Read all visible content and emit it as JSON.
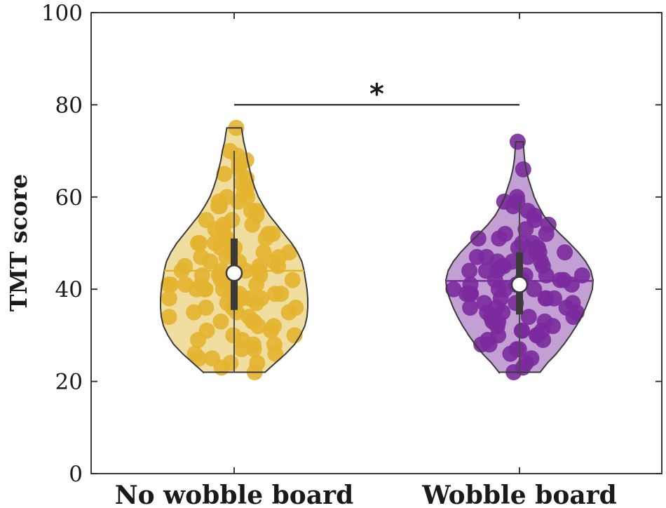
{
  "chart_data": {
    "type": "violin",
    "title": "",
    "xlabel": "",
    "ylabel": "TMT score",
    "ylim": [
      0,
      100
    ],
    "yticks": [
      0,
      20,
      40,
      60,
      80,
      100
    ],
    "grid": false,
    "categories": [
      "No wobble board",
      "Wobble board"
    ],
    "series": [
      {
        "category": "No wobble board",
        "color": "#e3b330",
        "fill": "#ecd88e",
        "min": 22,
        "max": 75,
        "q1": 35.5,
        "q3": 51,
        "median": 43.5,
        "mean": 44,
        "whisker_high": 70,
        "density": [
          [
            22,
            0.42
          ],
          [
            24,
            0.56
          ],
          [
            26,
            0.7
          ],
          [
            28,
            0.82
          ],
          [
            30,
            0.9
          ],
          [
            32,
            0.96
          ],
          [
            34,
            0.99
          ],
          [
            36,
            1.0
          ],
          [
            38,
            1.0
          ],
          [
            40,
            0.99
          ],
          [
            42,
            0.97
          ],
          [
            44,
            0.95
          ],
          [
            46,
            0.92
          ],
          [
            48,
            0.86
          ],
          [
            50,
            0.78
          ],
          [
            52,
            0.68
          ],
          [
            54,
            0.58
          ],
          [
            56,
            0.48
          ],
          [
            58,
            0.4
          ],
          [
            60,
            0.33
          ],
          [
            62,
            0.28
          ],
          [
            64,
            0.24
          ],
          [
            66,
            0.21
          ],
          [
            68,
            0.18
          ],
          [
            70,
            0.16
          ],
          [
            72,
            0.13
          ],
          [
            74,
            0.11
          ],
          [
            75,
            0.1
          ]
        ],
        "points": [
          75,
          70,
          69,
          68,
          67,
          66,
          65,
          64,
          63,
          62,
          61,
          60,
          60,
          59,
          59,
          58,
          58,
          57,
          57,
          56,
          55,
          55,
          54,
          54,
          53,
          53,
          52,
          52,
          51,
          51,
          51,
          50,
          50,
          50,
          49,
          49,
          48,
          48,
          48,
          47,
          47,
          47,
          46,
          46,
          46,
          45,
          45,
          45,
          44,
          44,
          44,
          44,
          43,
          43,
          43,
          42,
          42,
          42,
          42,
          41,
          41,
          41,
          41,
          41,
          40,
          40,
          40,
          40,
          39,
          39,
          39,
          39,
          38,
          38,
          38,
          38,
          37,
          37,
          37,
          36,
          36,
          36,
          35,
          35,
          35,
          34,
          34,
          33,
          33,
          33,
          32,
          32,
          31,
          31,
          30,
          30,
          29,
          29,
          28,
          28,
          27,
          27,
          26,
          26,
          25,
          25,
          24,
          24,
          23,
          22
        ]
      },
      {
        "category": "Wobble board",
        "color": "#7a2a9c",
        "fill": "#b98fcb",
        "min": 22,
        "max": 72,
        "q1": 34.5,
        "q3": 48,
        "median": 41,
        "mean": 41.8,
        "whisker_high": 59,
        "density": [
          [
            22,
            0.28
          ],
          [
            24,
            0.38
          ],
          [
            26,
            0.5
          ],
          [
            28,
            0.6
          ],
          [
            30,
            0.69
          ],
          [
            32,
            0.77
          ],
          [
            34,
            0.84
          ],
          [
            36,
            0.9
          ],
          [
            38,
            0.95
          ],
          [
            40,
            0.99
          ],
          [
            42,
            1.0
          ],
          [
            44,
            0.97
          ],
          [
            46,
            0.9
          ],
          [
            48,
            0.8
          ],
          [
            50,
            0.68
          ],
          [
            52,
            0.55
          ],
          [
            54,
            0.43
          ],
          [
            56,
            0.33
          ],
          [
            58,
            0.26
          ],
          [
            60,
            0.2
          ],
          [
            62,
            0.16
          ],
          [
            64,
            0.12
          ],
          [
            66,
            0.09
          ],
          [
            68,
            0.07
          ],
          [
            70,
            0.06
          ],
          [
            72,
            0.05
          ]
        ],
        "points": [
          72,
          66,
          60,
          59,
          59,
          58,
          57,
          56,
          55,
          54,
          53,
          52,
          52,
          51,
          51,
          50,
          50,
          49,
          49,
          49,
          48,
          48,
          48,
          47,
          47,
          47,
          46,
          46,
          46,
          45,
          45,
          45,
          44,
          44,
          44,
          43,
          43,
          43,
          42,
          42,
          42,
          42,
          41,
          41,
          41,
          41,
          40,
          40,
          40,
          40,
          39,
          39,
          39,
          39,
          38,
          38,
          38,
          38,
          37,
          37,
          37,
          36,
          36,
          36,
          35,
          35,
          35,
          34,
          34,
          34,
          33,
          33,
          33,
          32,
          32,
          31,
          31,
          31,
          30,
          30,
          30,
          29,
          29,
          28,
          28,
          27,
          27,
          26,
          25,
          24,
          23,
          22
        ]
      }
    ],
    "annotations": [
      {
        "type": "significance",
        "text": "*",
        "between": [
          "No wobble board",
          "Wobble board"
        ],
        "y": 80
      }
    ]
  }
}
